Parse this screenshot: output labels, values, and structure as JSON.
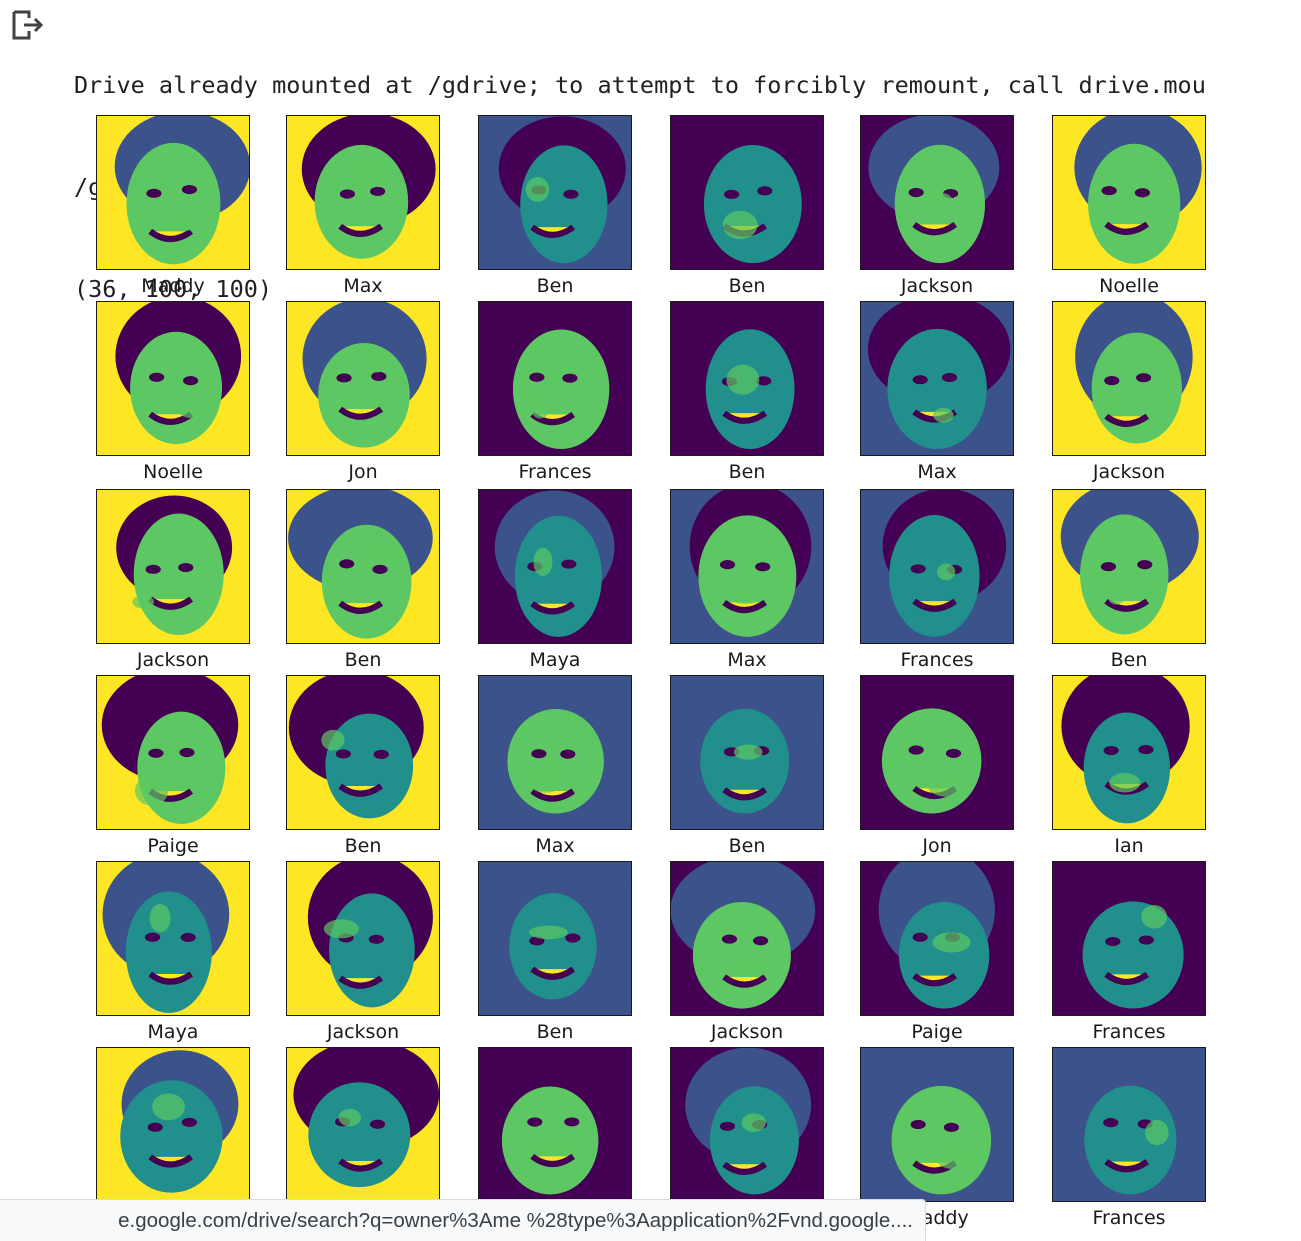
{
  "output": {
    "icon": "output-arrow-icon",
    "lines": [
      "Drive already mounted at /gdrive; to attempt to forcibly remount, call drive.mou",
      "/gdrive",
      "(36, 100, 100)"
    ]
  },
  "figure": {
    "colormap": "viridis",
    "colors": [
      "#440154",
      "#3b528b",
      "#21908d",
      "#5dc863",
      "#fde725"
    ],
    "labels": [
      "Maddy",
      "Max",
      "Ben",
      "Ben",
      "Jackson",
      "Noelle",
      "Noelle",
      "Jon",
      "Frances",
      "Ben",
      "Max",
      "Jackson",
      "Jackson",
      "Ben",
      "Maya",
      "Max",
      "Frances",
      "Ben",
      "Paige",
      "Ben",
      "Max",
      "Ben",
      "Jon",
      "Ian",
      "Maya",
      "Jackson",
      "Ben",
      "Jackson",
      "Paige",
      "Frances",
      "",
      "",
      "",
      "",
      "Maddy",
      "Frances"
    ]
  },
  "status_bar": {
    "url": "e.google.com/drive/search?q=owner%3Ame %28type%3Aapplication%2Fvnd.google...."
  }
}
